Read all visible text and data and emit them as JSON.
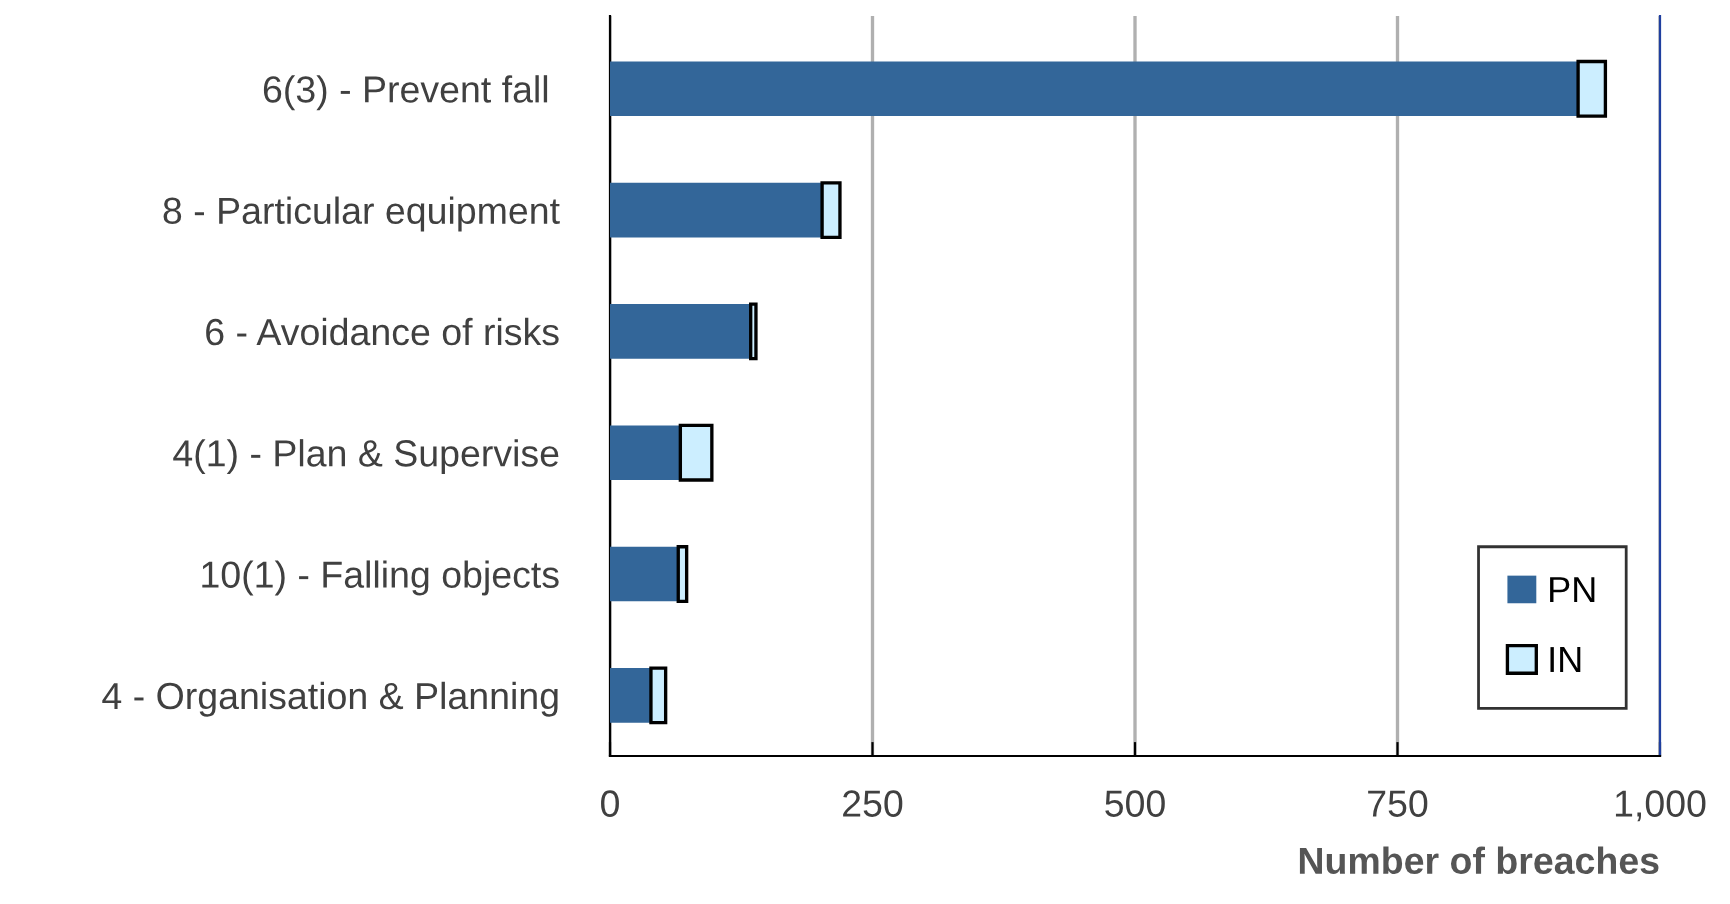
{
  "chart_data": {
    "type": "bar",
    "orientation": "horizontal",
    "stacked": true,
    "categories": [
      "6(3) - Prevent fall ",
      "8 - Particular equipment",
      "6 - Avoidance of risks",
      "4(1) - Plan & Supervise",
      "10(1) - Falling objects",
      "4 - Organisation & Planning"
    ],
    "series": [
      {
        "name": "PN",
        "color": "#336699",
        "values": [
          922,
          202,
          134,
          67,
          65,
          39
        ]
      },
      {
        "name": "IN",
        "color": "#cceeff",
        "values": [
          26,
          17,
          5,
          30,
          8,
          14
        ]
      }
    ],
    "xlabel": "Number of breaches",
    "xlim": [
      0,
      1000
    ],
    "xticks": [
      0,
      250,
      500,
      750,
      {
        "value": 1000,
        "label": "1,000"
      }
    ],
    "grid": "x",
    "legend": "bottom right"
  }
}
